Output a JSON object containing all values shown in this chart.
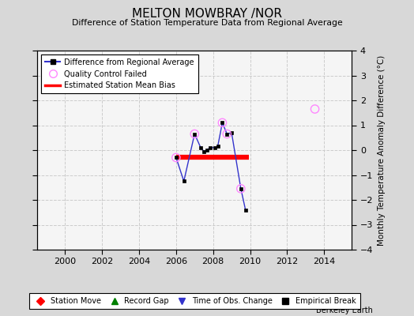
{
  "title": "MELTON MOWBRAY /NOR",
  "subtitle": "Difference of Station Temperature Data from Regional Average",
  "ylabel": "Monthly Temperature Anomaly Difference (°C)",
  "xlim": [
    1998.5,
    2015.5
  ],
  "ylim": [
    -4,
    4
  ],
  "yticks": [
    -4,
    -3,
    -2,
    -1,
    0,
    1,
    2,
    3,
    4
  ],
  "xticks": [
    2000,
    2002,
    2004,
    2006,
    2008,
    2010,
    2012,
    2014
  ],
  "background_color": "#d8d8d8",
  "plot_bg_color": "#f5f5f5",
  "line_color": "#3333cc",
  "line_data_x": [
    2006.0,
    2006.42,
    2007.0,
    2007.33,
    2007.5,
    2007.67,
    2007.83,
    2008.08,
    2008.25,
    2008.5,
    2008.75,
    2009.0,
    2009.5,
    2009.75
  ],
  "line_data_y": [
    -0.3,
    -1.25,
    0.65,
    0.1,
    -0.05,
    0.0,
    0.1,
    0.1,
    0.15,
    1.1,
    0.65,
    0.7,
    -1.55,
    -2.4
  ],
  "qc_failed_x": [
    2006.0,
    2007.0,
    2008.5,
    2008.75,
    2009.5,
    2013.5
  ],
  "qc_failed_y": [
    -0.3,
    0.65,
    1.1,
    0.65,
    -1.55,
    1.65
  ],
  "bias_x_start": 2006.0,
  "bias_x_end": 2009.92,
  "bias_y": -0.3,
  "watermark": "Berkeley Earth"
}
